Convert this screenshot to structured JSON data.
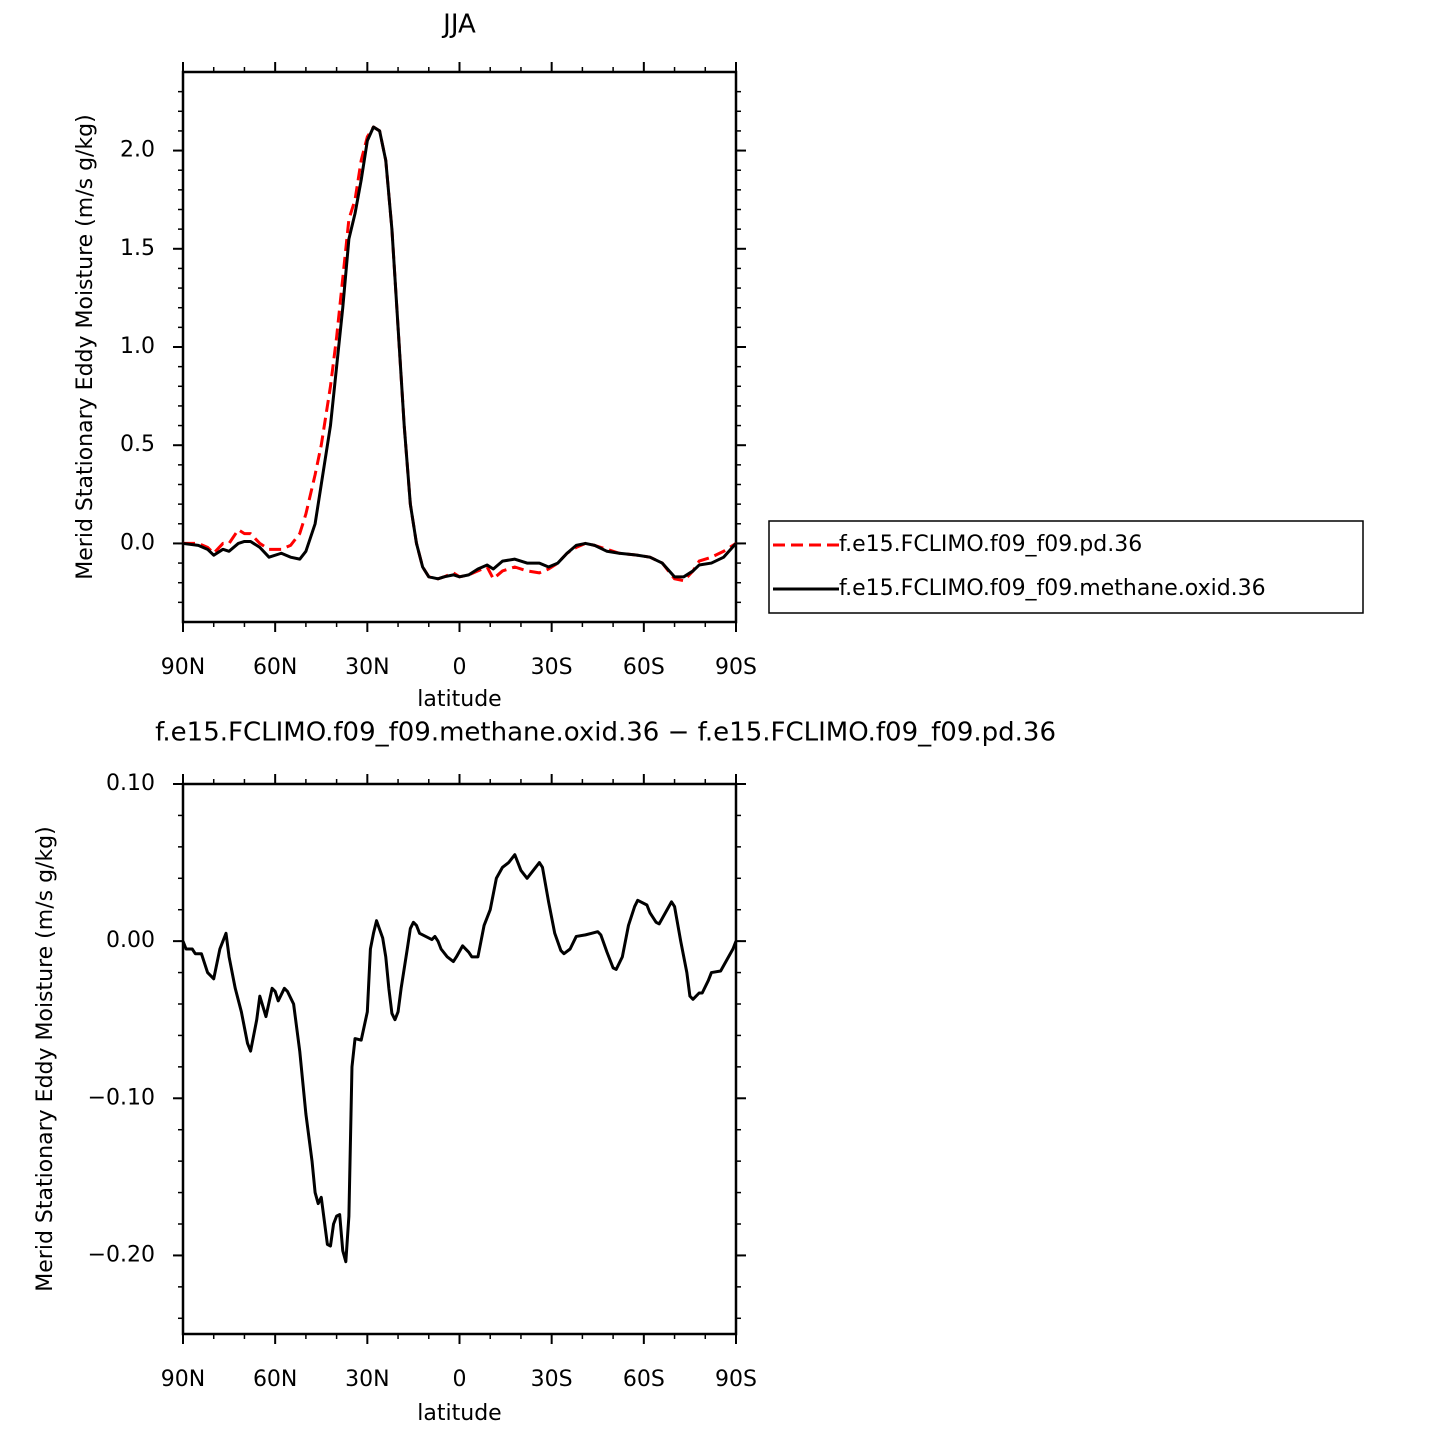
{
  "chart_data": [
    {
      "type": "line",
      "title": "JJA",
      "x_label": "latitude",
      "y_label": "Merid Stationary Eddy Moisture (m/s g/kg)",
      "xlim": [
        90,
        -90
      ],
      "xticks": [
        {
          "value": 90,
          "label": "90N"
        },
        {
          "value": 60,
          "label": "60N"
        },
        {
          "value": 30,
          "label": "30N"
        },
        0,
        {
          "value": -30,
          "label": "30S"
        },
        {
          "value": -60,
          "label": "60S"
        },
        {
          "value": -90,
          "label": "90S"
        }
      ],
      "ylim": [
        -0.4,
        2.4
      ],
      "yticks": [
        {
          "value": 0,
          "label": "0.0"
        },
        0.5,
        {
          "value": 1,
          "label": "1.0"
        },
        1.5,
        {
          "value": 2,
          "label": "2.0"
        }
      ],
      "legend": "right",
      "x": [
        90,
        85,
        82,
        80,
        77,
        75,
        72,
        70,
        68,
        65,
        62,
        58,
        55,
        52,
        50,
        47,
        45,
        42,
        40,
        38,
        36,
        34,
        32,
        30,
        28,
        26,
        24,
        22,
        20,
        18,
        16,
        14,
        12,
        10,
        7,
        5,
        2,
        0,
        -3,
        -6,
        -9,
        -11,
        -14,
        -18,
        -22,
        -26,
        -29,
        -32,
        -35,
        -38,
        -41,
        -44,
        -48,
        -52,
        -58,
        -62,
        -66,
        -70,
        -73,
        -76,
        -78,
        -82,
        -86,
        -90
      ],
      "series": [
        {
          "name": "f.e15.FCLIMO.f09_f09.pd.36",
          "color": "#ff0000",
          "line_style": "dashed",
          "values": [
            0,
            0,
            -0.02,
            -0.05,
            0,
            0,
            0.07,
            0.05,
            0.05,
            0,
            -0.03,
            -0.03,
            -0.01,
            0.05,
            0.15,
            0.35,
            0.5,
            0.8,
            1.05,
            1.35,
            1.65,
            1.75,
            1.95,
            2.07,
            2.12,
            2.1,
            1.95,
            1.6,
            1.1,
            0.6,
            0.2,
            0,
            -0.12,
            -0.17,
            -0.18,
            -0.17,
            -0.15,
            -0.17,
            -0.16,
            -0.14,
            -0.12,
            -0.18,
            -0.14,
            -0.12,
            -0.14,
            -0.15,
            -0.13,
            -0.1,
            -0.05,
            -0.02,
            0,
            -0.01,
            -0.03,
            -0.05,
            -0.06,
            -0.07,
            -0.1,
            -0.18,
            -0.19,
            -0.14,
            -0.09,
            -0.07,
            -0.04,
            0
          ]
        },
        {
          "name": "f.e15.FCLIMO.f09_f09.methane.oxid.36",
          "color": "#000000",
          "line_style": "solid",
          "values": [
            0,
            -0.01,
            -0.03,
            -0.06,
            -0.03,
            -0.04,
            0,
            0.01,
            0.01,
            -0.02,
            -0.07,
            -0.05,
            -0.07,
            -0.08,
            -0.04,
            0.1,
            0.3,
            0.6,
            0.9,
            1.2,
            1.55,
            1.68,
            1.85,
            2.05,
            2.12,
            2.1,
            1.95,
            1.6,
            1.1,
            0.6,
            0.2,
            0,
            -0.12,
            -0.17,
            -0.18,
            -0.17,
            -0.16,
            -0.17,
            -0.16,
            -0.13,
            -0.11,
            -0.13,
            -0.09,
            -0.08,
            -0.1,
            -0.1,
            -0.12,
            -0.1,
            -0.05,
            -0.01,
            0,
            -0.01,
            -0.04,
            -0.05,
            -0.06,
            -0.07,
            -0.1,
            -0.17,
            -0.17,
            -0.14,
            -0.11,
            -0.1,
            -0.07,
            0
          ]
        }
      ]
    },
    {
      "type": "line",
      "title": "f.e15.FCLIMO.f09_f09.methane.oxid.36 − f.e15.FCLIMO.f09_f09.pd.36",
      "x_label": "latitude",
      "y_label": "Merid Stationary Eddy Moisture (m/s g/kg)",
      "xlim": [
        90,
        -90
      ],
      "xticks": [
        {
          "value": 90,
          "label": "90N"
        },
        {
          "value": 60,
          "label": "60N"
        },
        {
          "value": 30,
          "label": "30N"
        },
        0,
        {
          "value": -30,
          "label": "30S"
        },
        {
          "value": -60,
          "label": "60S"
        },
        {
          "value": -90,
          "label": "90S"
        }
      ],
      "ylim": [
        -0.25,
        0.1
      ],
      "yticks": [
        {
          "value": 0.1,
          "label": "0.10"
        },
        {
          "value": 0,
          "label": "0.00"
        },
        {
          "value": -0.1,
          "label": "−0.10"
        },
        {
          "value": -0.2,
          "label": "−0.20"
        }
      ],
      "x": [
        90,
        89,
        87,
        86,
        84,
        82,
        80,
        78,
        76,
        75,
        73,
        71,
        69,
        68,
        66,
        65,
        63,
        61,
        60,
        59,
        57,
        56,
        54,
        52,
        50,
        48,
        47,
        46,
        45,
        43,
        42,
        41,
        40,
        39,
        38,
        37,
        36,
        35,
        34,
        32,
        30,
        29,
        28,
        27,
        25,
        24,
        23,
        22,
        21,
        20,
        19,
        17,
        16,
        15,
        14,
        13,
        11,
        9,
        8,
        7,
        6,
        4,
        2,
        1,
        -1,
        -3,
        -4,
        -6,
        -8,
        -10,
        -12,
        -14,
        -16,
        -18,
        -20,
        -22,
        -24,
        -26,
        -27,
        -29,
        -31,
        -33,
        -34,
        -36,
        -38,
        -41,
        -43,
        -45,
        -46,
        -48,
        -50,
        -51,
        -53,
        -55,
        -57,
        -58,
        -61,
        -62,
        -64,
        -65,
        -67,
        -69,
        -70,
        -72,
        -74,
        -75,
        -76,
        -78,
        -79,
        -81,
        -82,
        -85,
        -87,
        -89,
        -90
      ],
      "series": [
        {
          "color": "#000000",
          "line_style": "solid",
          "values": [
            0,
            -0.005,
            -0.005,
            -0.008,
            -0.008,
            -0.02,
            -0.024,
            -0.005,
            0.005,
            -0.01,
            -0.03,
            -0.045,
            -0.065,
            -0.07,
            -0.05,
            -0.035,
            -0.048,
            -0.03,
            -0.032,
            -0.038,
            -0.03,
            -0.032,
            -0.04,
            -0.07,
            -0.11,
            -0.14,
            -0.16,
            -0.167,
            -0.163,
            -0.193,
            -0.194,
            -0.18,
            -0.175,
            -0.174,
            -0.197,
            -0.204,
            -0.175,
            -0.08,
            -0.062,
            -0.063,
            -0.045,
            -0.005,
            0.005,
            0.013,
            0.002,
            -0.01,
            -0.03,
            -0.046,
            -0.05,
            -0.045,
            -0.03,
            -0.005,
            0.008,
            0.012,
            0.01,
            0.005,
            0.003,
            0.001,
            0.003,
            0,
            -0.005,
            -0.01,
            -0.013,
            -0.01,
            -0.003,
            -0.007,
            -0.01,
            -0.01,
            0.01,
            0.02,
            0.04,
            0.047,
            0.05,
            0.055,
            0.045,
            0.04,
            0.045,
            0.05,
            0.047,
            0.025,
            0.005,
            -0.006,
            -0.008,
            -0.005,
            0.003,
            0.004,
            0.005,
            0.006,
            0.004,
            -0.007,
            -0.017,
            -0.018,
            -0.01,
            0.01,
            0.022,
            0.026,
            0.023,
            0.018,
            0.012,
            0.011,
            0.018,
            0.025,
            0.022,
            0,
            -0.02,
            -0.035,
            -0.037,
            -0.033,
            -0.033,
            -0.025,
            -0.02,
            -0.019,
            -0.012,
            -0.005,
            0
          ]
        }
      ]
    }
  ]
}
